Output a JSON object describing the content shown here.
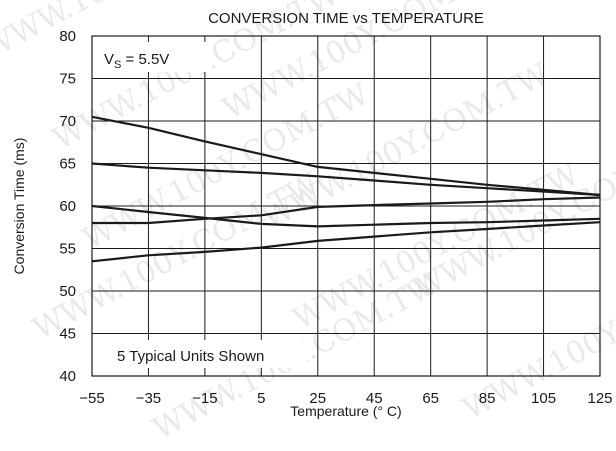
{
  "chart_data": {
    "type": "line",
    "title": "CONVERSION TIME vs TEMPERATURE",
    "xlabel": "Temperature (° C)",
    "ylabel": "Conversion Time (ms)",
    "xlim": [
      -55,
      125
    ],
    "ylim": [
      40,
      80
    ],
    "x_ticks": [
      "−55",
      "−35",
      "−15",
      "5",
      "25",
      "45",
      "65",
      "85",
      "105",
      "125"
    ],
    "y_ticks": [
      "40",
      "45",
      "50",
      "55",
      "60",
      "65",
      "70",
      "75",
      "80"
    ],
    "grid": true,
    "series": [
      {
        "x": [
          -55,
          -35,
          -15,
          5,
          25,
          45,
          65,
          85,
          105,
          125
        ],
        "values": [
          70.5,
          69.2,
          67.6,
          66.1,
          64.6,
          63.9,
          63.2,
          62.5,
          61.9,
          61.3
        ]
      },
      {
        "x": [
          -55,
          -35,
          -15,
          5,
          25,
          45,
          65,
          85,
          105,
          125
        ],
        "values": [
          65.0,
          64.5,
          64.2,
          63.9,
          63.5,
          63.0,
          62.5,
          62.1,
          61.7,
          61.3
        ]
      },
      {
        "x": [
          -55,
          -35,
          -15,
          5,
          25,
          45,
          65,
          85,
          105,
          125
        ],
        "values": [
          58.0,
          58.0,
          58.5,
          58.9,
          59.9,
          60.1,
          60.3,
          60.5,
          60.8,
          61.0
        ]
      },
      {
        "x": [
          -55,
          -35,
          -15,
          5,
          25,
          45,
          65,
          85,
          105,
          125
        ],
        "values": [
          60.0,
          59.3,
          58.6,
          57.9,
          57.6,
          57.8,
          58.0,
          58.1,
          58.3,
          58.5
        ]
      },
      {
        "x": [
          -55,
          -35,
          -15,
          5,
          25,
          45,
          65,
          85,
          105,
          125
        ],
        "values": [
          53.5,
          54.2,
          54.6,
          55.1,
          55.9,
          56.4,
          56.9,
          57.3,
          57.7,
          58.1
        ]
      }
    ],
    "annotations": {
      "vs_main": "V",
      "vs_sub": "S",
      "vs_value": " = 5.5V",
      "units_note": "5 Typical Units Shown"
    },
    "watermark": "WWW.100Y.COM.TW",
    "colors": {
      "line": "#1a1a1a",
      "grid": "#1a1a1a",
      "watermark": "#d8d8d8"
    }
  }
}
